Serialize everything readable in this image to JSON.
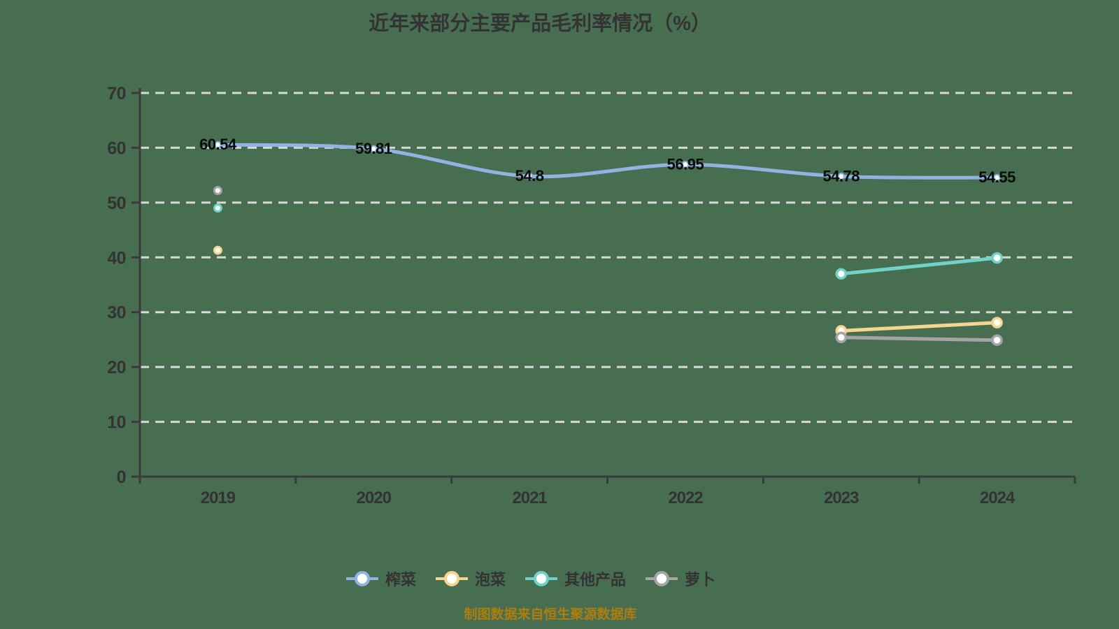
{
  "title": "近年来部分主要产品毛利率情况（%）",
  "source_note": "制图数据来自恒生聚源数据库",
  "colors": {
    "background": "#486E52",
    "axis": "#3A3A3A",
    "grid": "#D8D8D8",
    "tick_text": "#333333",
    "data_label": "#0A0A0A",
    "title_text": "#333333",
    "source_text": "#AD7E0E",
    "point_fill": "#FFFFFF"
  },
  "legend": {
    "items": [
      {
        "label": "榨菜",
        "color": "#92B3E2"
      },
      {
        "label": "泡菜",
        "color": "#F6D593"
      },
      {
        "label": "其他产品",
        "color": "#72D2C8"
      },
      {
        "label": "萝卜",
        "color": "#A5A5A5"
      }
    ]
  },
  "chart_data": {
    "type": "line",
    "title": "近年来部分主要产品毛利率情况（%）",
    "categories": [
      "2019",
      "2020",
      "2021",
      "2022",
      "2023",
      "2024"
    ],
    "series": [
      {
        "name": "榨菜",
        "color": "#92B3E2",
        "values": [
          60.54,
          59.81,
          54.8,
          56.95,
          54.78,
          54.55
        ],
        "labels": [
          "60.54",
          "59.81",
          "54.8",
          "56.95",
          "54.78",
          "54.55"
        ],
        "show_labels": true,
        "smooth": true
      },
      {
        "name": "泡菜",
        "color": "#F6D593",
        "values": [
          41.3,
          null,
          null,
          null,
          26.6,
          28.1
        ],
        "show_labels": false,
        "smooth": false
      },
      {
        "name": "其他产品",
        "color": "#72D2C8",
        "values": [
          49.0,
          null,
          null,
          null,
          37.0,
          39.9
        ],
        "show_labels": false,
        "smooth": false
      },
      {
        "name": "萝卜",
        "color": "#A5A5A5",
        "values": [
          52.2,
          null,
          null,
          null,
          25.4,
          24.9
        ],
        "show_labels": false,
        "smooth": false
      }
    ],
    "ylim": [
      0,
      70
    ],
    "ytick_step": 10,
    "ytick_labels": [
      "0",
      "10",
      "20",
      "30",
      "40",
      "50",
      "60",
      "70"
    ],
    "grid": "dashed-horizontal",
    "legend_position": "bottom",
    "xlabel": "",
    "ylabel": ""
  }
}
